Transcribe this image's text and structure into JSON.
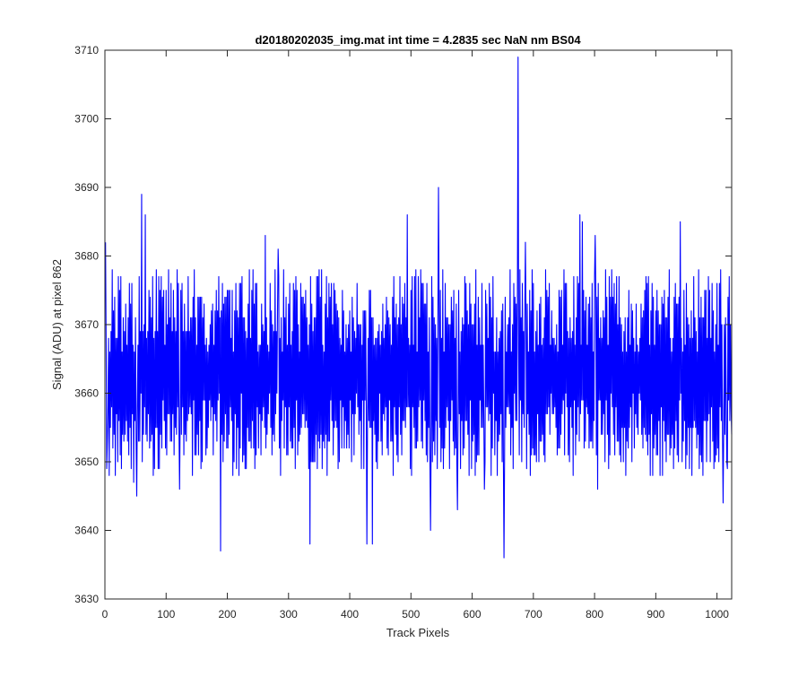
{
  "chart_data": {
    "type": "line",
    "title": "d20180202035_img.mat int time = 4.2835 sec  NaN nm BS04",
    "xlabel": "Track Pixels",
    "ylabel": "Signal (ADU) at pixel 862",
    "xlim": [
      0,
      1024
    ],
    "ylim": [
      3630,
      3710
    ],
    "xticks": [
      0,
      100,
      200,
      300,
      400,
      500,
      600,
      700,
      800,
      900,
      1000
    ],
    "xtick_labels": [
      "0",
      "100",
      "200",
      "300",
      "400",
      "500",
      "600",
      "700",
      "800",
      "900",
      "1000"
    ],
    "yticks": [
      3630,
      3640,
      3650,
      3660,
      3670,
      3680,
      3690,
      3700,
      3710
    ],
    "ytick_labels": [
      "3630",
      "3640",
      "3650",
      "3660",
      "3670",
      "3680",
      "3690",
      "3700",
      "3710"
    ],
    "grid": false,
    "legend": "none",
    "series": [
      {
        "color": "#0000ff",
        "baseline": 3663,
        "noise_range": 12,
        "n_points": 1024,
        "key_points": [
          {
            "x": 1,
            "y": 3682
          },
          {
            "x": 4,
            "y": 3653
          },
          {
            "x": 12,
            "y": 3678
          },
          {
            "x": 40,
            "y": 3676
          },
          {
            "x": 47,
            "y": 3647
          },
          {
            "x": 52,
            "y": 3645
          },
          {
            "x": 60,
            "y": 3689
          },
          {
            "x": 66,
            "y": 3686
          },
          {
            "x": 122,
            "y": 3646
          },
          {
            "x": 189,
            "y": 3637
          },
          {
            "x": 262,
            "y": 3683
          },
          {
            "x": 283,
            "y": 3681
          },
          {
            "x": 335,
            "y": 3638
          },
          {
            "x": 428,
            "y": 3638
          },
          {
            "x": 437,
            "y": 3638
          },
          {
            "x": 494,
            "y": 3686
          },
          {
            "x": 532,
            "y": 3640
          },
          {
            "x": 545,
            "y": 3690
          },
          {
            "x": 576,
            "y": 3643
          },
          {
            "x": 620,
            "y": 3646
          },
          {
            "x": 652,
            "y": 3636
          },
          {
            "x": 675,
            "y": 3709
          },
          {
            "x": 687,
            "y": 3682
          },
          {
            "x": 776,
            "y": 3686
          },
          {
            "x": 780,
            "y": 3685
          },
          {
            "x": 801,
            "y": 3683
          },
          {
            "x": 805,
            "y": 3646
          },
          {
            "x": 940,
            "y": 3685
          },
          {
            "x": 960,
            "y": 3668
          },
          {
            "x": 1010,
            "y": 3644
          },
          {
            "x": 1016,
            "y": 3650
          },
          {
            "x": 1024,
            "y": 3654
          }
        ]
      }
    ]
  }
}
